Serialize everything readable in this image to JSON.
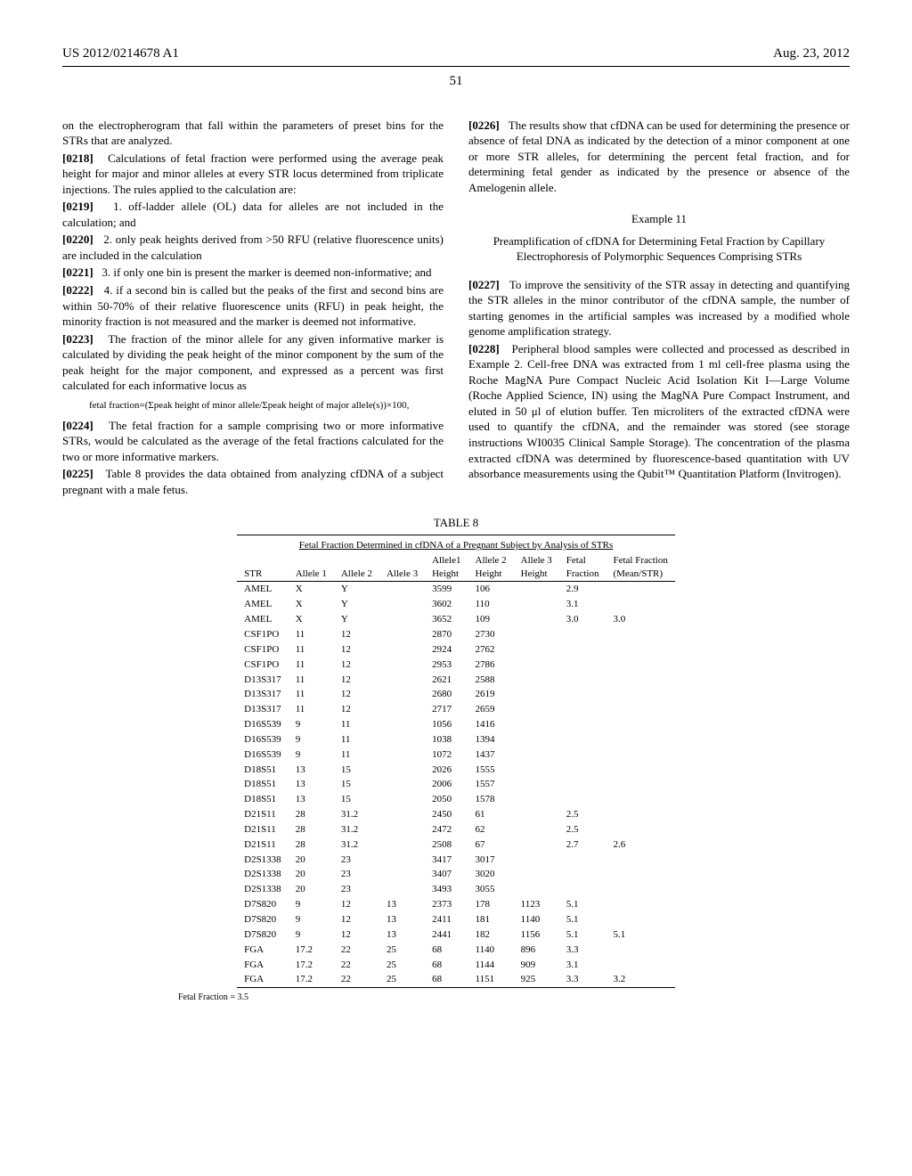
{
  "header": {
    "left": "US 2012/0214678 A1",
    "right": "Aug. 23, 2012"
  },
  "page_number": "51",
  "left_col": {
    "p0217_cont": "on the electropherogram that fall within the parameters of preset bins for the STRs that are analyzed.",
    "p0218_num": "[0218]",
    "p0218": "Calculations of fetal fraction were performed using the average peak height for major and minor alleles at every STR locus determined from triplicate injections. The rules applied to the calculation are:",
    "p0219_num": "[0219]",
    "p0219": "1. off-ladder allele (OL) data for alleles are not included in the calculation; and",
    "p0220_num": "[0220]",
    "p0220": "2. only peak heights derived from >50 RFU (relative fluorescence units) are included in the calculation",
    "p0221_num": "[0221]",
    "p0221": "3. if only one bin is present the marker is deemed non-informative; and",
    "p0222_num": "[0222]",
    "p0222": "4. if a second bin is called but the peaks of the first and second bins are within 50-70% of their relative fluorescence units (RFU) in peak height, the minority fraction is not measured and the marker is deemed not informative.",
    "p0223_num": "[0223]",
    "p0223": "The fraction of the minor allele for any given informative marker is calculated by dividing the peak height of the minor component by the sum of the peak height for the major component, and expressed as a percent was first calculated for each informative locus as",
    "formula": "fetal fraction=(Σpeak height of minor allele/Σpeak height of major allele(s))×100,",
    "p0224_num": "[0224]",
    "p0224": "The fetal fraction for a sample comprising two or more informative STRs, would be calculated as the average of the fetal fractions calculated for the two or more informative markers.",
    "p0225_num": "[0225]",
    "p0225": "Table 8 provides the data obtained from analyzing cfDNA of a subject pregnant with a male fetus."
  },
  "right_col": {
    "p0226_num": "[0226]",
    "p0226": "The results show that cfDNA can be used for determining the presence or absence of fetal DNA as indicated by the detection of a minor component at one or more STR alleles, for determining the percent fetal fraction, and for determining fetal gender as indicated by the presence or absence of the Amelogenin allele.",
    "example_heading": "Example 11",
    "example_subheading": "Preamplification of cfDNA for Determining Fetal Fraction by Capillary Electrophoresis of Polymorphic Sequences Comprising STRs",
    "p0227_num": "[0227]",
    "p0227": "To improve the sensitivity of the STR assay in detecting and quantifying the STR alleles in the minor contributor of the cfDNA sample, the number of starting genomes in the artificial samples was increased by a modified whole genome amplification strategy.",
    "p0228_num": "[0228]",
    "p0228": "Peripheral blood samples were collected and processed as described in Example 2. Cell-free DNA was extracted from 1 ml cell-free plasma using the Roche MagNA Pure Compact Nucleic Acid Isolation Kit I—Large Volume (Roche Applied Science, IN) using the MagNA Pure Compact Instrument, and eluted in 50 μl of elution buffer. Ten microliters of the extracted cfDNA were used to quantify the cfDNA, and the remainder was stored (see storage instructions WI0035 Clinical Sample Storage). The concentration of the plasma extracted cfDNA was determined by fluorescence-based quantitation with UV absorbance measurements using the Qubit™ Quantitation Platform (Invitrogen)."
  },
  "table": {
    "label": "TABLE 8",
    "title": "Fetal Fraction Determined in cfDNA of a Pregnant Subject by Analysis of STRs",
    "columns": [
      "STR",
      "Allele 1",
      "Allele 2",
      "Allele 3",
      "Allele1 Height",
      "Allele 2 Height",
      "Allele 3 Height",
      "Fetal Fraction",
      "Fetal Fraction (Mean/STR)"
    ],
    "rows": [
      [
        "AMEL",
        "X",
        "Y",
        "",
        "3599",
        "106",
        "",
        "2.9",
        ""
      ],
      [
        "AMEL",
        "X",
        "Y",
        "",
        "3602",
        "110",
        "",
        "3.1",
        ""
      ],
      [
        "AMEL",
        "X",
        "Y",
        "",
        "3652",
        "109",
        "",
        "3.0",
        "3.0"
      ],
      [
        "CSF1PO",
        "11",
        "12",
        "",
        "2870",
        "2730",
        "",
        "",
        ""
      ],
      [
        "CSF1PO",
        "11",
        "12",
        "",
        "2924",
        "2762",
        "",
        "",
        ""
      ],
      [
        "CSF1PO",
        "11",
        "12",
        "",
        "2953",
        "2786",
        "",
        "",
        ""
      ],
      [
        "D13S317",
        "11",
        "12",
        "",
        "2621",
        "2588",
        "",
        "",
        ""
      ],
      [
        "D13S317",
        "11",
        "12",
        "",
        "2680",
        "2619",
        "",
        "",
        ""
      ],
      [
        "D13S317",
        "11",
        "12",
        "",
        "2717",
        "2659",
        "",
        "",
        ""
      ],
      [
        "D16S539",
        "9",
        "11",
        "",
        "1056",
        "1416",
        "",
        "",
        ""
      ],
      [
        "D16S539",
        "9",
        "11",
        "",
        "1038",
        "1394",
        "",
        "",
        ""
      ],
      [
        "D16S539",
        "9",
        "11",
        "",
        "1072",
        "1437",
        "",
        "",
        ""
      ],
      [
        "D18S51",
        "13",
        "15",
        "",
        "2026",
        "1555",
        "",
        "",
        ""
      ],
      [
        "D18S51",
        "13",
        "15",
        "",
        "2006",
        "1557",
        "",
        "",
        ""
      ],
      [
        "D18S51",
        "13",
        "15",
        "",
        "2050",
        "1578",
        "",
        "",
        ""
      ],
      [
        "D21S11",
        "28",
        "31.2",
        "",
        "2450",
        "61",
        "",
        "2.5",
        ""
      ],
      [
        "D21S11",
        "28",
        "31.2",
        "",
        "2472",
        "62",
        "",
        "2.5",
        ""
      ],
      [
        "D21S11",
        "28",
        "31.2",
        "",
        "2508",
        "67",
        "",
        "2.7",
        "2.6"
      ],
      [
        "D2S1338",
        "20",
        "23",
        "",
        "3417",
        "3017",
        "",
        "",
        ""
      ],
      [
        "D2S1338",
        "20",
        "23",
        "",
        "3407",
        "3020",
        "",
        "",
        ""
      ],
      [
        "D2S1338",
        "20",
        "23",
        "",
        "3493",
        "3055",
        "",
        "",
        ""
      ],
      [
        "D7S820",
        "9",
        "12",
        "13",
        "2373",
        "178",
        "1123",
        "5.1",
        ""
      ],
      [
        "D7S820",
        "9",
        "12",
        "13",
        "2411",
        "181",
        "1140",
        "5.1",
        ""
      ],
      [
        "D7S820",
        "9",
        "12",
        "13",
        "2441",
        "182",
        "1156",
        "5.1",
        "5.1"
      ],
      [
        "FGA",
        "17.2",
        "22",
        "25",
        "68",
        "1140",
        "896",
        "3.3",
        ""
      ],
      [
        "FGA",
        "17.2",
        "22",
        "25",
        "68",
        "1144",
        "909",
        "3.1",
        ""
      ],
      [
        "FGA",
        "17.2",
        "22",
        "25",
        "68",
        "1151",
        "925",
        "3.3",
        "3.2"
      ]
    ],
    "footnote": "Fetal Fraction = 3.5"
  }
}
